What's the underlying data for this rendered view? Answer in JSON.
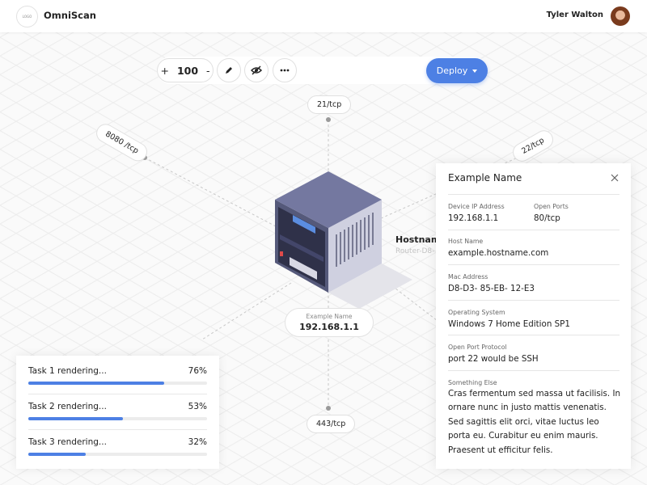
{
  "header": {
    "logo": "LOGO",
    "app_name": "OmniScan",
    "user_name": "Tyler Walton"
  },
  "toolbar": {
    "zoom_in": "+",
    "zoom": 100,
    "zoom_out": "-",
    "deploy": "Deploy"
  },
  "ports": [
    "21/tcp",
    "8080 /tcp",
    "22/tcp",
    "443/tcp"
  ],
  "device": {
    "hostname_label": "Hostname",
    "hostname": "Router-D8-",
    "name_label": "Example Name",
    "ip": "192.168.1.1"
  },
  "details": {
    "title": "Example Name",
    "fields": [
      {
        "label": "Device IP Address",
        "value": "192.168.1.1"
      },
      {
        "label": "Open Ports",
        "value": "80/tcp"
      },
      {
        "label": "Host Name",
        "value": "example.hostname.com"
      },
      {
        "label": "Mac Address",
        "value": "D8-D3- 85-EB- 12-E3"
      },
      {
        "label": "Operating System",
        "value": "Windows 7 Home Edition SP1"
      },
      {
        "label": "Open Port Protocol",
        "value": "port 22 would be SSH"
      },
      {
        "label": "Something Else",
        "value": "Cras fermentum sed massa ut facilisis. In ornare nunc in justo mattis venenatis. Sed sagittis elit orci, vitae luctus leo porta eu. Curabitur eu enim mauris. Praesent ut efficitur felis."
      }
    ]
  },
  "tasks": [
    {
      "label": "Task 1 rendering...",
      "progress": 76,
      "progress_label": "76%"
    },
    {
      "label": "Task 2 rendering...",
      "progress": 53,
      "progress_label": "53%"
    },
    {
      "label": "Task 3 rendering...",
      "progress": 32,
      "progress_label": "32%"
    }
  ]
}
